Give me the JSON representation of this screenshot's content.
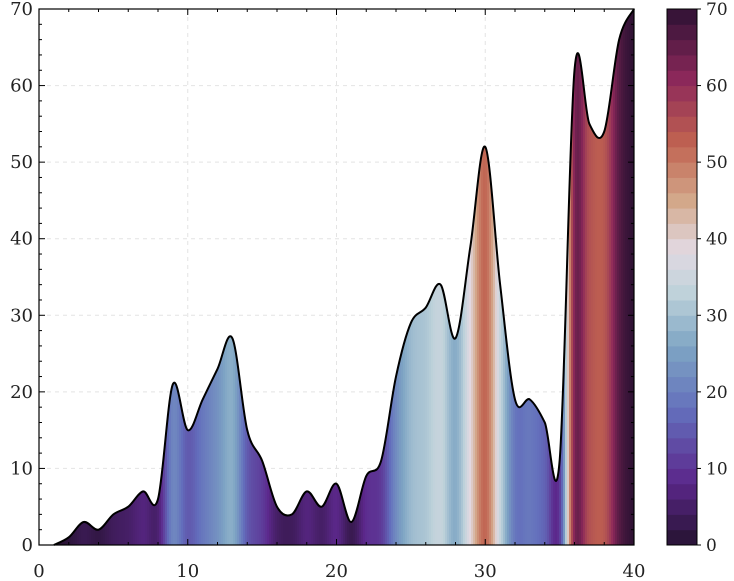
{
  "chart_data": {
    "type": "area",
    "title": "",
    "xlabel": "",
    "ylabel": "",
    "xlim": [
      0,
      40
    ],
    "ylim": [
      0,
      70
    ],
    "x_ticks": [
      0,
      10,
      20,
      30,
      40
    ],
    "y_ticks": [
      0,
      10,
      20,
      30,
      40,
      50,
      60,
      70
    ],
    "grid": true,
    "fill": "vertical bands colored by y value (twilight colormap)",
    "colorbar": {
      "range": [
        0,
        70
      ],
      "ticks": [
        0,
        10,
        20,
        30,
        40,
        50,
        60,
        70
      ],
      "levels": 35,
      "placement": "right"
    },
    "x": [
      1,
      2,
      3,
      4,
      5,
      6,
      7,
      8,
      9,
      10,
      11,
      12,
      13,
      14,
      15,
      16,
      17,
      18,
      19,
      20,
      21,
      22,
      23,
      24,
      25,
      26,
      27,
      28,
      29,
      30,
      31,
      32,
      33,
      34,
      35,
      36,
      37,
      38,
      39,
      40
    ],
    "y": [
      0,
      1,
      3,
      2,
      4,
      5,
      7,
      6,
      21,
      15,
      19,
      23,
      27,
      15,
      11,
      5,
      4,
      7,
      5,
      8,
      3,
      9,
      11,
      22,
      29,
      31,
      34,
      27,
      39,
      52,
      34,
      19,
      19,
      16,
      11,
      62,
      55,
      54,
      66,
      70
    ]
  }
}
